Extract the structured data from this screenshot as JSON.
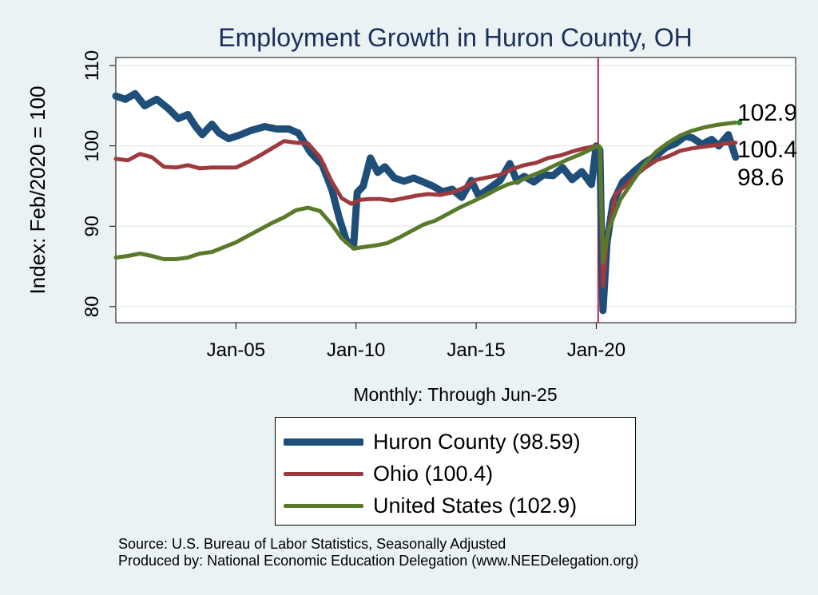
{
  "chart_data": {
    "type": "line",
    "title": "Employment Growth in Huron  County, OH",
    "ylabel": "Index: Feb/2020 = 100",
    "xlabel": "Monthly: Through Jun-25",
    "ylim": [
      78,
      111
    ],
    "xlim": [
      2000.0,
      2028.3
    ],
    "yticks": [
      80,
      90,
      100,
      110
    ],
    "xticks": [
      {
        "label": "Jan-05",
        "value": 2005.0
      },
      {
        "label": "Jan-10",
        "value": 2010.0
      },
      {
        "label": "Jan-15",
        "value": 2015.0
      },
      {
        "label": "Jan-20",
        "value": 2020.0
      }
    ],
    "vline": 2020.08,
    "series": [
      {
        "name": "Huron  County",
        "legend": "Huron  County (98.59)",
        "color": "#1f4e79",
        "width": 9,
        "end_label": "98.6",
        "points": [
          [
            2000.0,
            106.2
          ],
          [
            2000.4,
            105.8
          ],
          [
            2000.8,
            106.5
          ],
          [
            2001.2,
            105.0
          ],
          [
            2001.7,
            105.8
          ],
          [
            2002.2,
            104.6
          ],
          [
            2002.6,
            103.4
          ],
          [
            2003.0,
            103.9
          ],
          [
            2003.3,
            102.5
          ],
          [
            2003.6,
            101.4
          ],
          [
            2004.0,
            102.7
          ],
          [
            2004.3,
            101.6
          ],
          [
            2004.7,
            100.9
          ],
          [
            2005.2,
            101.4
          ],
          [
            2005.6,
            101.9
          ],
          [
            2006.2,
            102.4
          ],
          [
            2006.7,
            102.1
          ],
          [
            2007.2,
            102.1
          ],
          [
            2007.6,
            101.6
          ],
          [
            2008.1,
            99.2
          ],
          [
            2008.6,
            97.6
          ],
          [
            2009.0,
            94.5
          ],
          [
            2009.3,
            91.0
          ],
          [
            2009.6,
            88.2
          ],
          [
            2009.9,
            87.6
          ],
          [
            2010.05,
            94.2
          ],
          [
            2010.3,
            95.0
          ],
          [
            2010.6,
            98.5
          ],
          [
            2010.9,
            96.7
          ],
          [
            2011.2,
            97.4
          ],
          [
            2011.6,
            96.0
          ],
          [
            2012.0,
            95.6
          ],
          [
            2012.4,
            96.0
          ],
          [
            2012.8,
            95.5
          ],
          [
            2013.2,
            95.0
          ],
          [
            2013.6,
            94.3
          ],
          [
            2014.0,
            94.6
          ],
          [
            2014.4,
            93.6
          ],
          [
            2014.8,
            95.7
          ],
          [
            2015.1,
            93.8
          ],
          [
            2015.5,
            94.6
          ],
          [
            2016.0,
            95.7
          ],
          [
            2016.4,
            97.8
          ],
          [
            2016.7,
            95.6
          ],
          [
            2017.0,
            96.2
          ],
          [
            2017.4,
            95.5
          ],
          [
            2017.8,
            96.4
          ],
          [
            2018.2,
            96.3
          ],
          [
            2018.6,
            97.3
          ],
          [
            2019.0,
            95.8
          ],
          [
            2019.4,
            96.8
          ],
          [
            2019.8,
            95.2
          ],
          [
            2020.0,
            100.0
          ],
          [
            2020.15,
            99.5
          ],
          [
            2020.28,
            79.5
          ],
          [
            2020.45,
            88.0
          ],
          [
            2020.7,
            93.0
          ],
          [
            2021.1,
            95.5
          ],
          [
            2021.6,
            96.9
          ],
          [
            2022.0,
            97.9
          ],
          [
            2022.5,
            98.8
          ],
          [
            2022.9,
            99.8
          ],
          [
            2023.3,
            100.3
          ],
          [
            2023.7,
            101.2
          ],
          [
            2024.0,
            101.0
          ],
          [
            2024.4,
            100.2
          ],
          [
            2024.8,
            100.8
          ],
          [
            2025.1,
            100.0
          ],
          [
            2025.5,
            101.4
          ],
          [
            2025.8,
            98.6
          ]
        ]
      },
      {
        "name": "Ohio",
        "legend": "Ohio (100.4)",
        "color": "#9e3a3e",
        "width": 5,
        "end_label": "100.4",
        "points": [
          [
            2000.0,
            98.4
          ],
          [
            2000.5,
            98.2
          ],
          [
            2001.0,
            99.0
          ],
          [
            2001.5,
            98.6
          ],
          [
            2002.0,
            97.4
          ],
          [
            2002.5,
            97.3
          ],
          [
            2003.0,
            97.6
          ],
          [
            2003.5,
            97.2
          ],
          [
            2004.0,
            97.3
          ],
          [
            2004.5,
            97.3
          ],
          [
            2005.0,
            97.3
          ],
          [
            2005.5,
            98.0
          ],
          [
            2006.0,
            98.8
          ],
          [
            2006.5,
            99.7
          ],
          [
            2007.0,
            100.6
          ],
          [
            2007.5,
            100.4
          ],
          [
            2008.0,
            100.3
          ],
          [
            2008.5,
            98.6
          ],
          [
            2009.0,
            95.5
          ],
          [
            2009.4,
            93.5
          ],
          [
            2009.8,
            92.8
          ],
          [
            2010.2,
            93.3
          ],
          [
            2010.6,
            93.4
          ],
          [
            2011.0,
            93.4
          ],
          [
            2011.5,
            93.2
          ],
          [
            2012.0,
            93.5
          ],
          [
            2012.5,
            93.8
          ],
          [
            2013.0,
            94.0
          ],
          [
            2013.5,
            93.9
          ],
          [
            2014.0,
            94.2
          ],
          [
            2014.5,
            94.8
          ],
          [
            2015.0,
            95.8
          ],
          [
            2015.5,
            96.1
          ],
          [
            2016.0,
            96.4
          ],
          [
            2016.5,
            97.1
          ],
          [
            2017.0,
            97.6
          ],
          [
            2017.5,
            97.9
          ],
          [
            2018.0,
            98.5
          ],
          [
            2018.5,
            98.8
          ],
          [
            2019.0,
            99.3
          ],
          [
            2019.5,
            99.7
          ],
          [
            2020.0,
            100.0
          ],
          [
            2020.15,
            99.8
          ],
          [
            2020.28,
            82.5
          ],
          [
            2020.45,
            88.5
          ],
          [
            2020.8,
            94.0
          ],
          [
            2021.2,
            95.0
          ],
          [
            2021.6,
            96.2
          ],
          [
            2022.0,
            97.2
          ],
          [
            2022.5,
            98.2
          ],
          [
            2023.0,
            98.7
          ],
          [
            2023.5,
            99.4
          ],
          [
            2024.0,
            99.7
          ],
          [
            2024.5,
            99.9
          ],
          [
            2025.0,
            100.1
          ],
          [
            2025.4,
            100.3
          ],
          [
            2025.8,
            100.4
          ]
        ]
      },
      {
        "name": "United States",
        "legend": "United States (102.9)",
        "color": "#5a7a2b",
        "width": 5,
        "end_label": "102.9",
        "points": [
          [
            2000.0,
            86.1
          ],
          [
            2000.5,
            86.3
          ],
          [
            2001.0,
            86.6
          ],
          [
            2001.5,
            86.3
          ],
          [
            2002.0,
            85.9
          ],
          [
            2002.5,
            85.9
          ],
          [
            2003.0,
            86.1
          ],
          [
            2003.5,
            86.6
          ],
          [
            2004.0,
            86.8
          ],
          [
            2004.5,
            87.4
          ],
          [
            2005.0,
            88.0
          ],
          [
            2005.5,
            88.8
          ],
          [
            2006.0,
            89.6
          ],
          [
            2006.5,
            90.4
          ],
          [
            2007.0,
            91.1
          ],
          [
            2007.5,
            92.0
          ],
          [
            2008.0,
            92.3
          ],
          [
            2008.5,
            91.9
          ],
          [
            2009.0,
            90.2
          ],
          [
            2009.4,
            88.5
          ],
          [
            2009.9,
            87.2
          ],
          [
            2010.3,
            87.4
          ],
          [
            2010.8,
            87.6
          ],
          [
            2011.3,
            87.9
          ],
          [
            2011.8,
            88.6
          ],
          [
            2012.3,
            89.4
          ],
          [
            2012.8,
            90.2
          ],
          [
            2013.3,
            90.7
          ],
          [
            2013.8,
            91.5
          ],
          [
            2014.3,
            92.3
          ],
          [
            2014.8,
            93.0
          ],
          [
            2015.3,
            93.7
          ],
          [
            2015.8,
            94.5
          ],
          [
            2016.3,
            95.2
          ],
          [
            2016.8,
            95.6
          ],
          [
            2017.3,
            96.3
          ],
          [
            2017.8,
            96.9
          ],
          [
            2018.3,
            97.6
          ],
          [
            2018.8,
            98.3
          ],
          [
            2019.3,
            98.9
          ],
          [
            2019.8,
            99.6
          ],
          [
            2020.0,
            100.0
          ],
          [
            2020.15,
            99.9
          ],
          [
            2020.28,
            85.5
          ],
          [
            2020.5,
            89.5
          ],
          [
            2021.0,
            93.3
          ],
          [
            2021.5,
            95.5
          ],
          [
            2022.0,
            97.7
          ],
          [
            2022.5,
            99.3
          ],
          [
            2023.0,
            100.4
          ],
          [
            2023.5,
            101.3
          ],
          [
            2024.0,
            101.9
          ],
          [
            2024.5,
            102.3
          ],
          [
            2025.0,
            102.6
          ],
          [
            2025.5,
            102.8
          ],
          [
            2025.8,
            102.9
          ]
        ]
      }
    ]
  },
  "source_lines": [
    "Source: U.S. Bureau of Labor Statistics, Seasonally Adjusted",
    "Produced by: National Economic Education Delegation (www.NEEDelegation.org)"
  ]
}
